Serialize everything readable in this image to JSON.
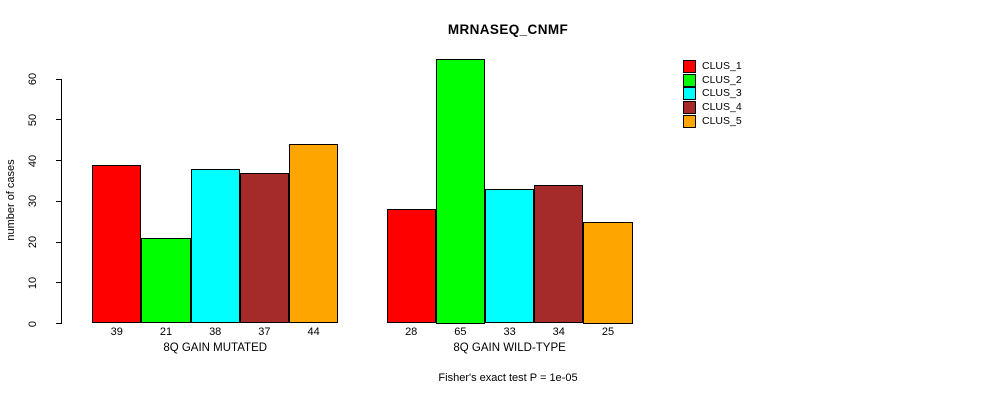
{
  "title": "MRNASEQ_CNMF",
  "caption": "Fisher's exact test P = 1e-05",
  "y_axis": {
    "label": "number of cases",
    "ticks": [
      0,
      10,
      20,
      30,
      40,
      50,
      60
    ]
  },
  "legend": {
    "items": [
      {
        "label": "CLUS_1",
        "color": "#FF0000"
      },
      {
        "label": "CLUS_2",
        "color": "#00FF00"
      },
      {
        "label": "CLUS_3",
        "color": "#00FFFF"
      },
      {
        "label": "CLUS_4",
        "color": "#A52A2A"
      },
      {
        "label": "CLUS_5",
        "color": "#FFA500"
      }
    ]
  },
  "chart_data": {
    "type": "bar",
    "title": "MRNASEQ_CNMF",
    "xlabel": "",
    "ylabel": "number of cases",
    "ylim": [
      0,
      65
    ],
    "grid": false,
    "legend_position": "top-right",
    "categories": [
      "8Q GAIN MUTATED",
      "8Q GAIN WILD-TYPE"
    ],
    "series": [
      {
        "name": "CLUS_1",
        "color": "#FF0000",
        "values": [
          39,
          28
        ]
      },
      {
        "name": "CLUS_2",
        "color": "#00FF00",
        "values": [
          21,
          65
        ]
      },
      {
        "name": "CLUS_3",
        "color": "#00FFFF",
        "values": [
          38,
          33
        ]
      },
      {
        "name": "CLUS_4",
        "color": "#A52A2A",
        "values": [
          37,
          34
        ]
      },
      {
        "name": "CLUS_5",
        "color": "#FFA500",
        "values": [
          44,
          25
        ]
      }
    ],
    "bar_value_labels": [
      [
        39,
        21,
        38,
        37,
        44
      ],
      [
        28,
        65,
        33,
        34,
        25
      ]
    ],
    "annotation": "Fisher's exact test P = 1e-05"
  }
}
